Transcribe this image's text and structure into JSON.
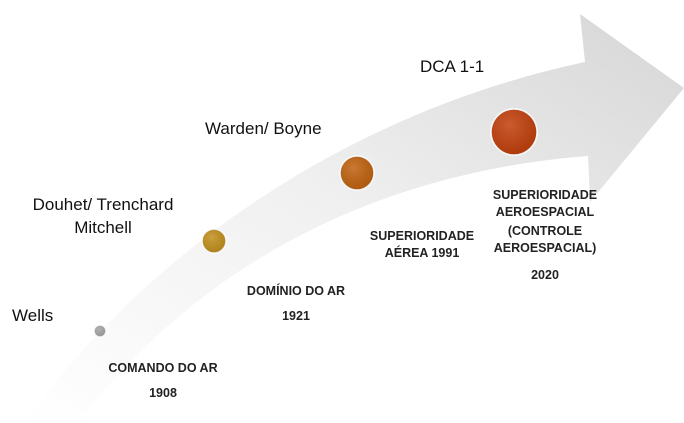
{
  "timeline": {
    "stages": [
      {
        "author": [
          "Wells"
        ],
        "concept": [
          "COMANDO DO AR",
          "1908"
        ],
        "color": "#a6a6a6"
      },
      {
        "author": [
          "Douhet/ Trenchard",
          "Mitchell"
        ],
        "concept": [
          "DOMÍNIO DO AR",
          "1921"
        ],
        "color": "#c2901c"
      },
      {
        "author": [
          "Warden/ Boyne"
        ],
        "concept": [
          "SUPERIORIDADE",
          "AÉREA 1991"
        ],
        "color": "#c1620f"
      },
      {
        "author": [
          "DCA 1-1"
        ],
        "concept": [
          "SUPERIORIDADE",
          "AEROESPACIAL",
          "(CONTROLE",
          "AEROESPACIAL)",
          "2020"
        ],
        "color": "#c2400c"
      }
    ]
  }
}
